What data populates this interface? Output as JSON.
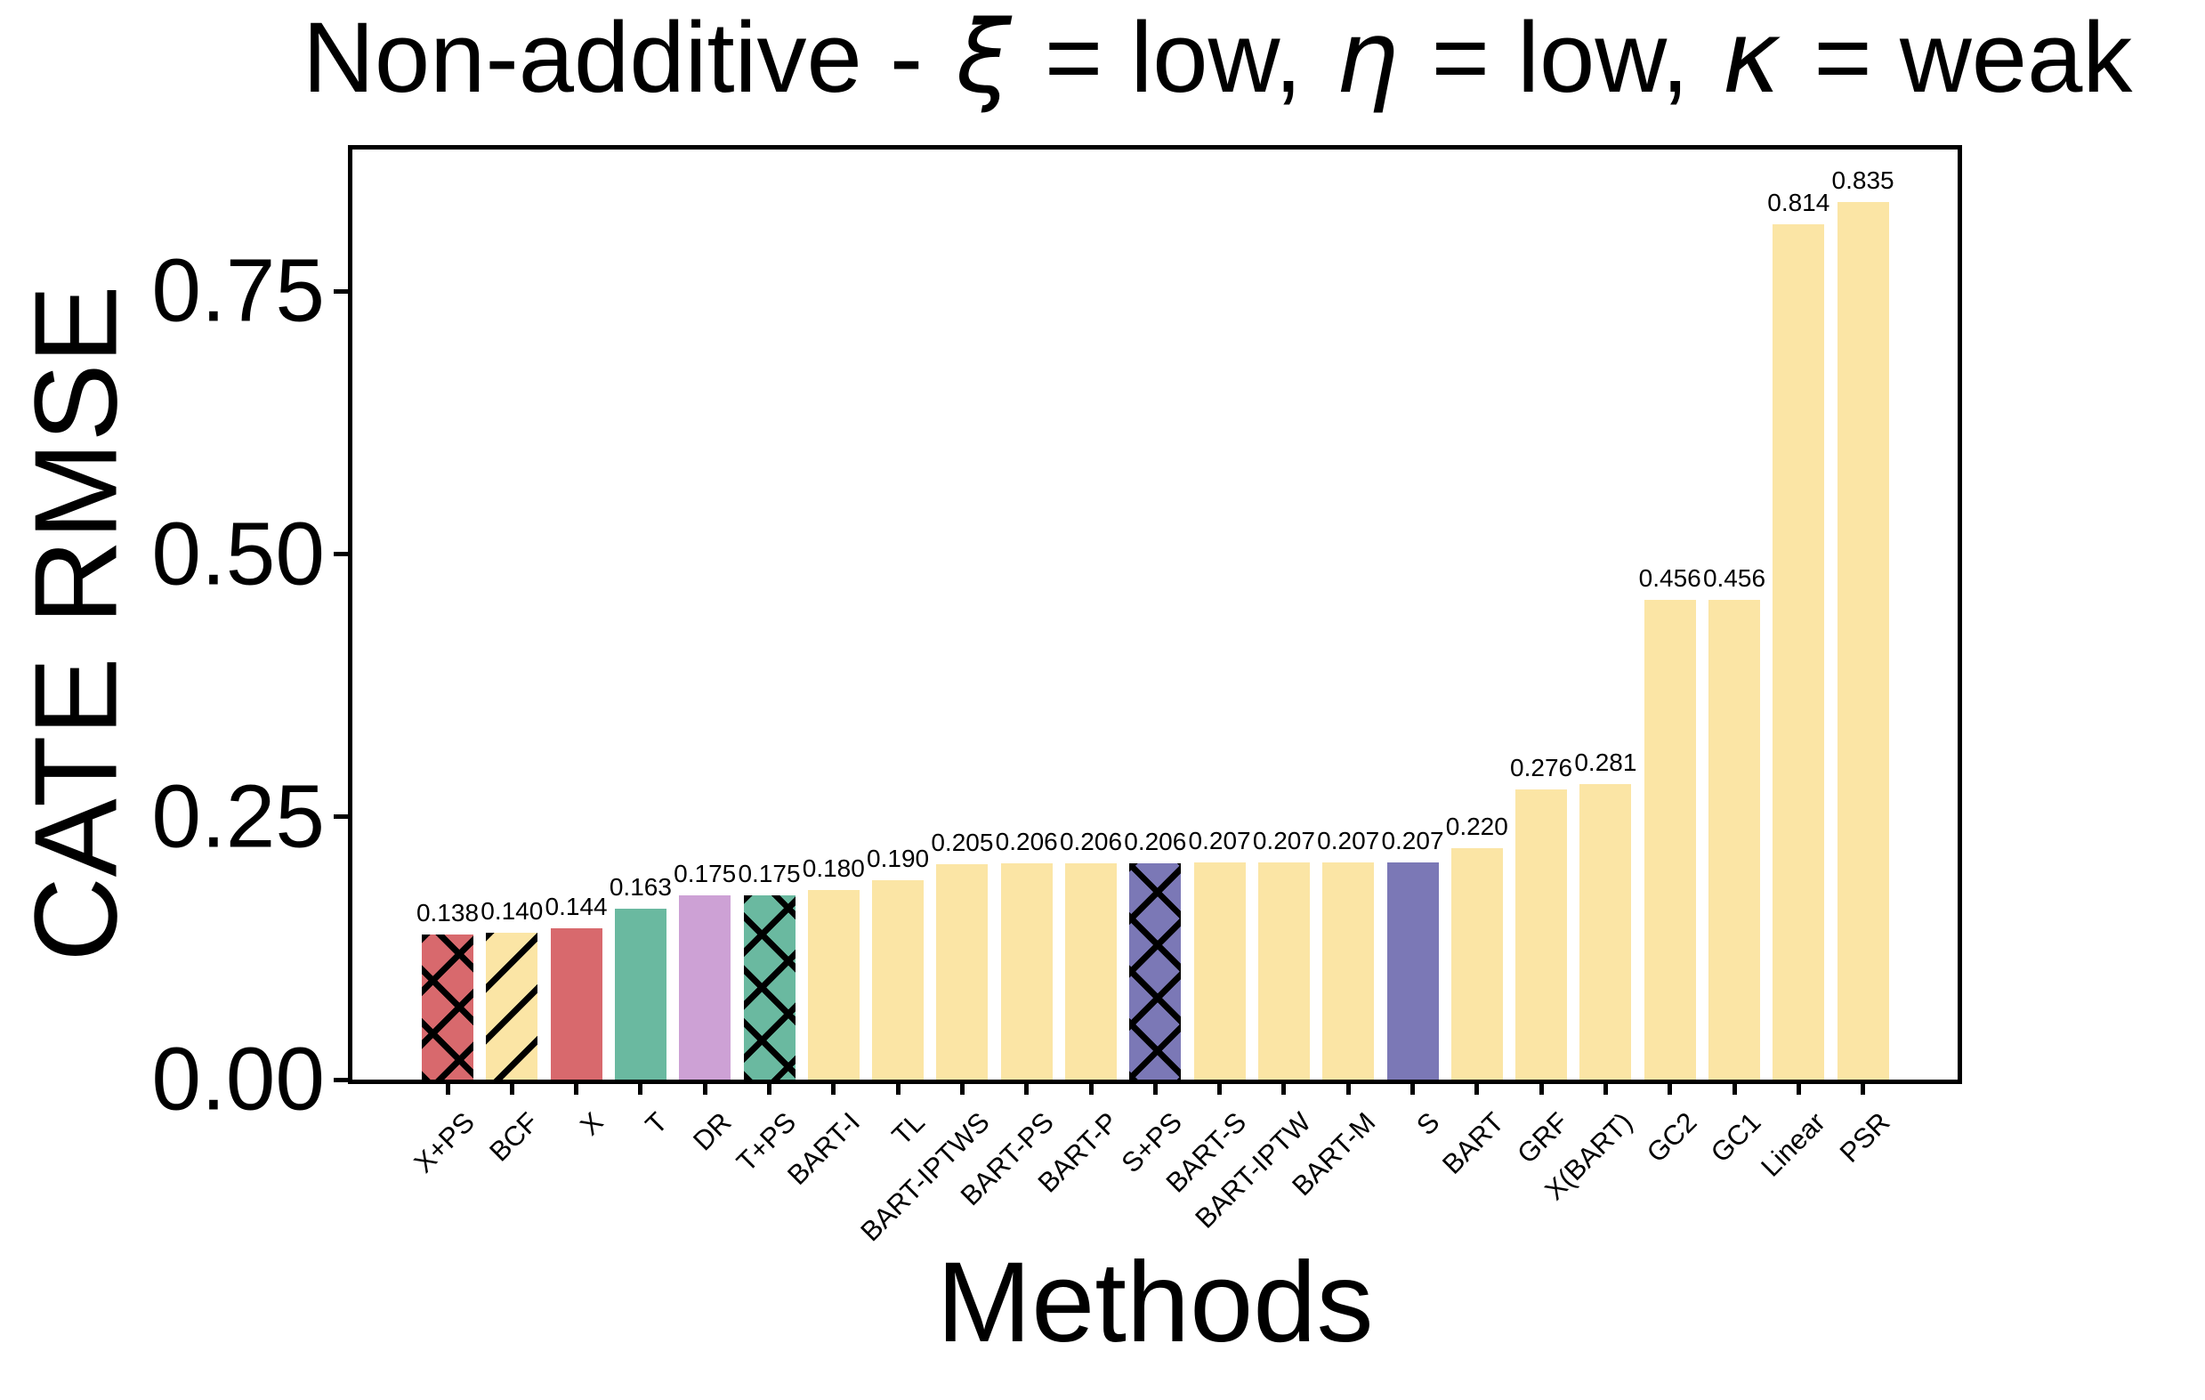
{
  "figure": {
    "title_plain": "Non-additive - ξ = low, η = low, κ = weak",
    "x_axis_label": "Methods",
    "y_axis_label": "CATE RMSE"
  },
  "chart_data": {
    "type": "bar",
    "title": "Non-additive - ξ = low, η = low, κ = weak",
    "title_segments": [
      {
        "text": "Non-additive - ",
        "italic": false
      },
      {
        "text": "ξ",
        "italic": true
      },
      {
        "text": " = low, ",
        "italic": false
      },
      {
        "text": "η",
        "italic": true
      },
      {
        "text": " = low, ",
        "italic": false
      },
      {
        "text": "κ",
        "italic": true
      },
      {
        "text": " = weak",
        "italic": false
      }
    ],
    "xlabel": "Methods",
    "ylabel": "CATE RMSE",
    "ylim": [
      0,
      0.885
    ],
    "grid": false,
    "legend": null,
    "ytick_values": [
      0,
      0.25,
      0.5,
      0.75
    ],
    "ytick_labels": [
      "0.00",
      "0.25",
      "0.50",
      "0.75"
    ],
    "categories": [
      "X+PS",
      "BCF",
      "X",
      "T",
      "DR",
      "T+PS",
      "BART-I",
      "TL",
      "BART-IPTWS",
      "BART-PS",
      "BART-P",
      "S+PS",
      "BART-S",
      "BART-IPTW",
      "BART-M",
      "S",
      "BART",
      "GRF",
      "X(BART)",
      "GC2",
      "GC1",
      "Linear",
      "PSR"
    ],
    "values": [
      0.138,
      0.14,
      0.144,
      0.163,
      0.175,
      0.175,
      0.18,
      0.19,
      0.205,
      0.206,
      0.206,
      0.206,
      0.207,
      0.207,
      0.207,
      0.207,
      0.22,
      0.276,
      0.281,
      0.456,
      0.456,
      0.814,
      0.835
    ],
    "bar_labels": [
      "0.138",
      "0.140",
      "0.144",
      "0.163",
      "0.175",
      "0.175",
      "0.180",
      "0.190",
      "0.205",
      "0.206",
      "0.206",
      "0.206",
      "0.207",
      "0.207",
      "0.207",
      "0.207",
      "0.220",
      "0.276",
      "0.281",
      "0.456",
      "0.456",
      "0.814",
      "0.835"
    ],
    "bar_styles": [
      {
        "color": "red",
        "hatch": "x"
      },
      {
        "color": "yellow",
        "hatch": "slash"
      },
      {
        "color": "red",
        "hatch": "none"
      },
      {
        "color": "green",
        "hatch": "none"
      },
      {
        "color": "plum",
        "hatch": "none"
      },
      {
        "color": "green",
        "hatch": "x"
      },
      {
        "color": "yellow",
        "hatch": "none"
      },
      {
        "color": "yellow",
        "hatch": "none"
      },
      {
        "color": "yellow",
        "hatch": "none"
      },
      {
        "color": "yellow",
        "hatch": "none"
      },
      {
        "color": "yellow",
        "hatch": "none"
      },
      {
        "color": "purple",
        "hatch": "x"
      },
      {
        "color": "yellow",
        "hatch": "none"
      },
      {
        "color": "yellow",
        "hatch": "none"
      },
      {
        "color": "yellow",
        "hatch": "none"
      },
      {
        "color": "purple",
        "hatch": "none"
      },
      {
        "color": "yellow",
        "hatch": "none"
      },
      {
        "color": "yellow",
        "hatch": "none"
      },
      {
        "color": "yellow",
        "hatch": "none"
      },
      {
        "color": "yellow",
        "hatch": "none"
      },
      {
        "color": "yellow",
        "hatch": "none"
      },
      {
        "color": "yellow",
        "hatch": "none"
      },
      {
        "color": "yellow",
        "hatch": "none"
      }
    ],
    "palette": {
      "yellow": "#fbe5a5",
      "red": "#d8696d",
      "green": "#6ab9a0",
      "plum": "#cda1d5",
      "purple": "#7b78b6"
    },
    "axis_color": "#000000",
    "text_color": "#000000"
  }
}
